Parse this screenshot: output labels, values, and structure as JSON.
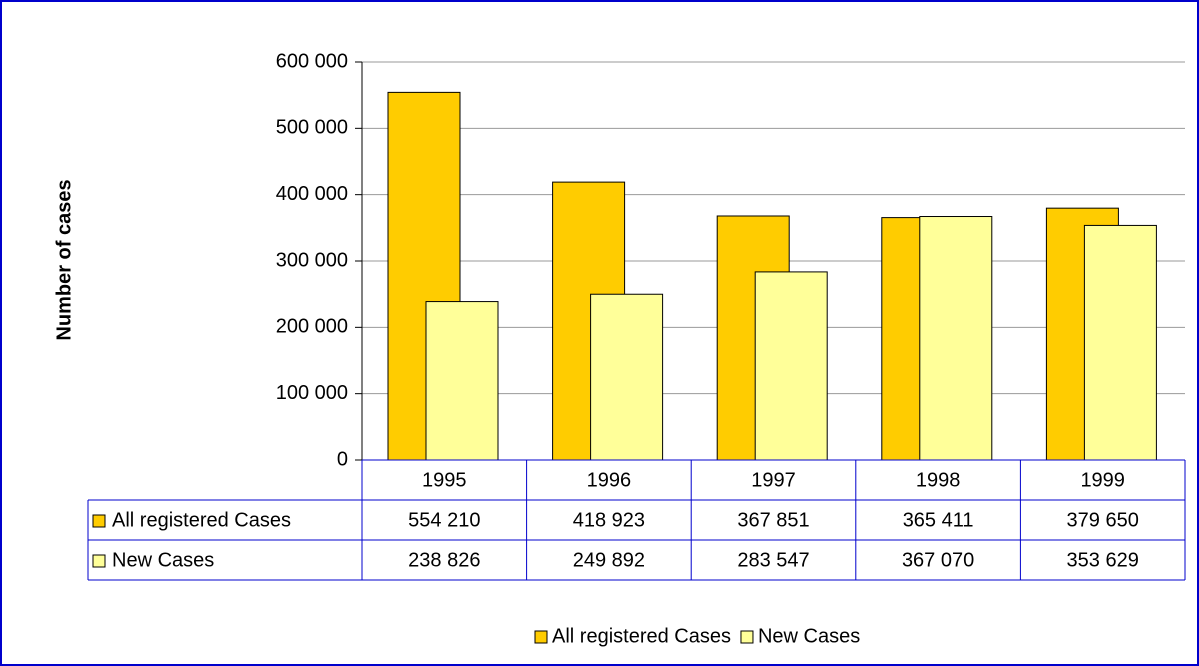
{
  "chart_data": {
    "type": "bar",
    "y_label": "Number of cases",
    "categories": [
      "1995",
      "1996",
      "1997",
      "1998",
      "1999"
    ],
    "series": [
      {
        "name": "All registered Cases",
        "color": "#ffcc00",
        "values": [
          554210,
          418923,
          367851,
          365411,
          379650
        ],
        "value_labels": [
          "554 210",
          "418 923",
          "367 851",
          "365 411",
          "379 650"
        ]
      },
      {
        "name": "New Cases",
        "color": "#ffff99",
        "values": [
          238826,
          249892,
          283547,
          367070,
          353629
        ],
        "value_labels": [
          "238 826",
          "249 892",
          "283 547",
          "367 070",
          "353 629"
        ]
      }
    ],
    "ylim": [
      0,
      600000
    ],
    "yticks": [
      {
        "value": 0,
        "label": "0"
      },
      {
        "value": 100000,
        "label": "100 000"
      },
      {
        "value": 200000,
        "label": "200 000"
      },
      {
        "value": 300000,
        "label": "300 000"
      },
      {
        "value": 400000,
        "label": "400 000"
      },
      {
        "value": 500000,
        "label": "500 000"
      },
      {
        "value": 600000,
        "label": "600 000"
      }
    ],
    "grid": true,
    "legend": "bottom"
  }
}
